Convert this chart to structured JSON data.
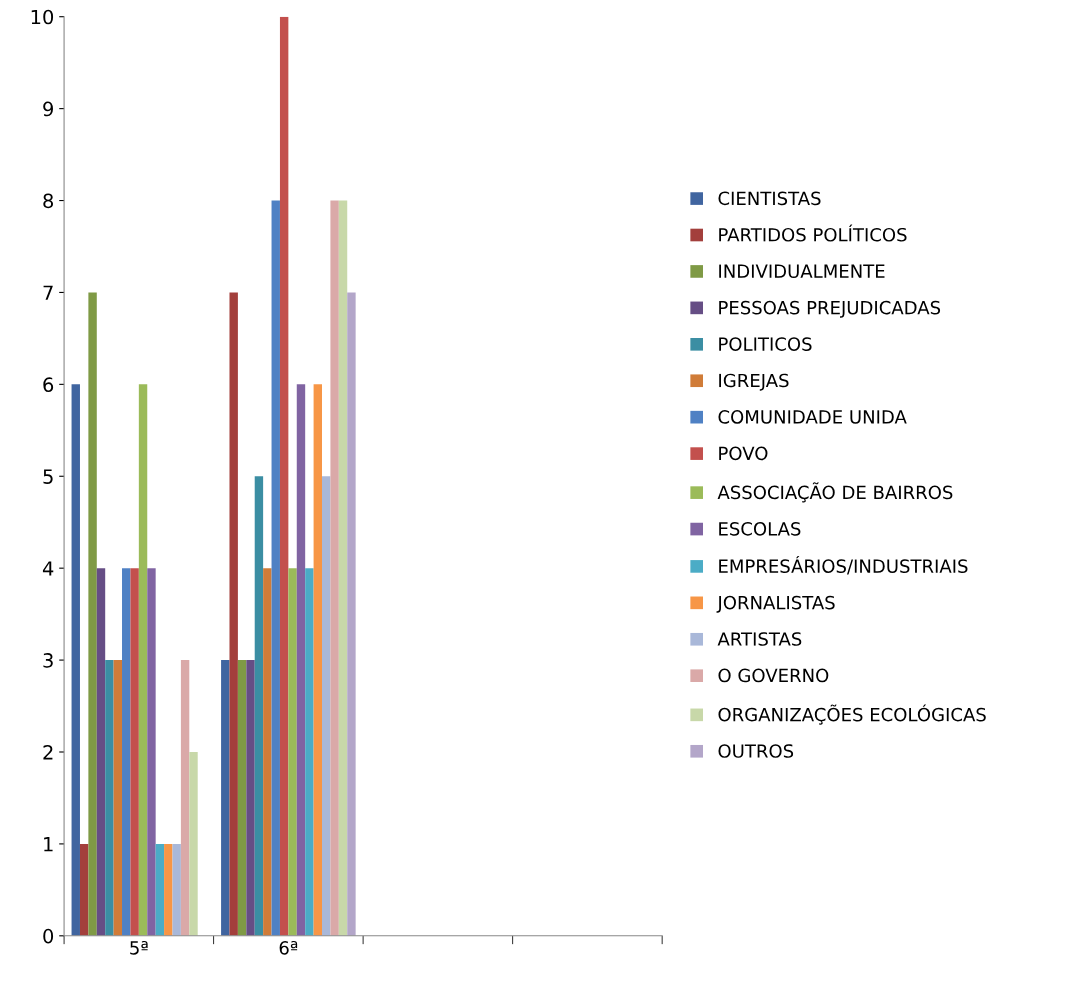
{
  "chart_data": {
    "type": "bar",
    "categories": [
      "5ª",
      "6ª",
      null,
      null
    ],
    "series": [
      {
        "name": "CIENTISTAS",
        "color": "#4065a0",
        "values": [
          6,
          3,
          null,
          null
        ]
      },
      {
        "name": "PARTIDOS POLÍTICOS",
        "color": "#a33f3c",
        "values": [
          1,
          7,
          null,
          null
        ]
      },
      {
        "name": "INDIVIDUALMENTE",
        "color": "#7f9a45",
        "values": [
          7,
          3,
          null,
          null
        ]
      },
      {
        "name": "PESSOAS PREJUDICADAS",
        "color": "#664e85",
        "values": [
          4,
          3,
          null,
          null
        ]
      },
      {
        "name": "POLITICOS",
        "color": "#3b8ea3",
        "values": [
          3,
          5,
          null,
          null
        ]
      },
      {
        "name": "IGREJAS",
        "color": "#d07c38",
        "values": [
          3,
          4,
          null,
          null
        ]
      },
      {
        "name": "COMUNIDADE UNIDA",
        "color": "#4f81c4",
        "values": [
          4,
          8,
          null,
          null
        ]
      },
      {
        "name": "POVO",
        "color": "#c3504d",
        "values": [
          4,
          10,
          null,
          null
        ]
      },
      {
        "name": "ASSOCIAÇÃO DE BAIRROS",
        "color": "#9bbb59",
        "values": [
          6,
          4,
          null,
          null
        ]
      },
      {
        "name": "ESCOLAS",
        "color": "#8064a2",
        "values": [
          4,
          6,
          null,
          null
        ]
      },
      {
        "name": "EMPRESÁRIOS/INDUSTRIAIS",
        "color": "#4bacc6",
        "values": [
          1,
          4,
          null,
          null
        ]
      },
      {
        "name": "JORNALISTAS",
        "color": "#f79646",
        "values": [
          1,
          6,
          null,
          null
        ]
      },
      {
        "name": "ARTISTAS",
        "color": "#a9b8d9",
        "values": [
          1,
          5,
          null,
          null
        ]
      },
      {
        "name": "O GOVERNO",
        "color": "#daa9a8",
        "values": [
          3,
          8,
          null,
          null
        ]
      },
      {
        "name": "ORGANIZAÇÕES ECOLÓGICAS",
        "color": "#c8d8a9",
        "values": [
          2,
          8,
          null,
          null
        ]
      },
      {
        "name": "OUTROS",
        "color": "#b3a6c9",
        "values": [
          0,
          7,
          null,
          null
        ]
      }
    ],
    "ylim": [
      0,
      10
    ],
    "yticks": [
      0,
      1,
      2,
      3,
      4,
      5,
      6,
      7,
      8,
      9,
      10
    ],
    "grid": false,
    "legend": "right"
  }
}
